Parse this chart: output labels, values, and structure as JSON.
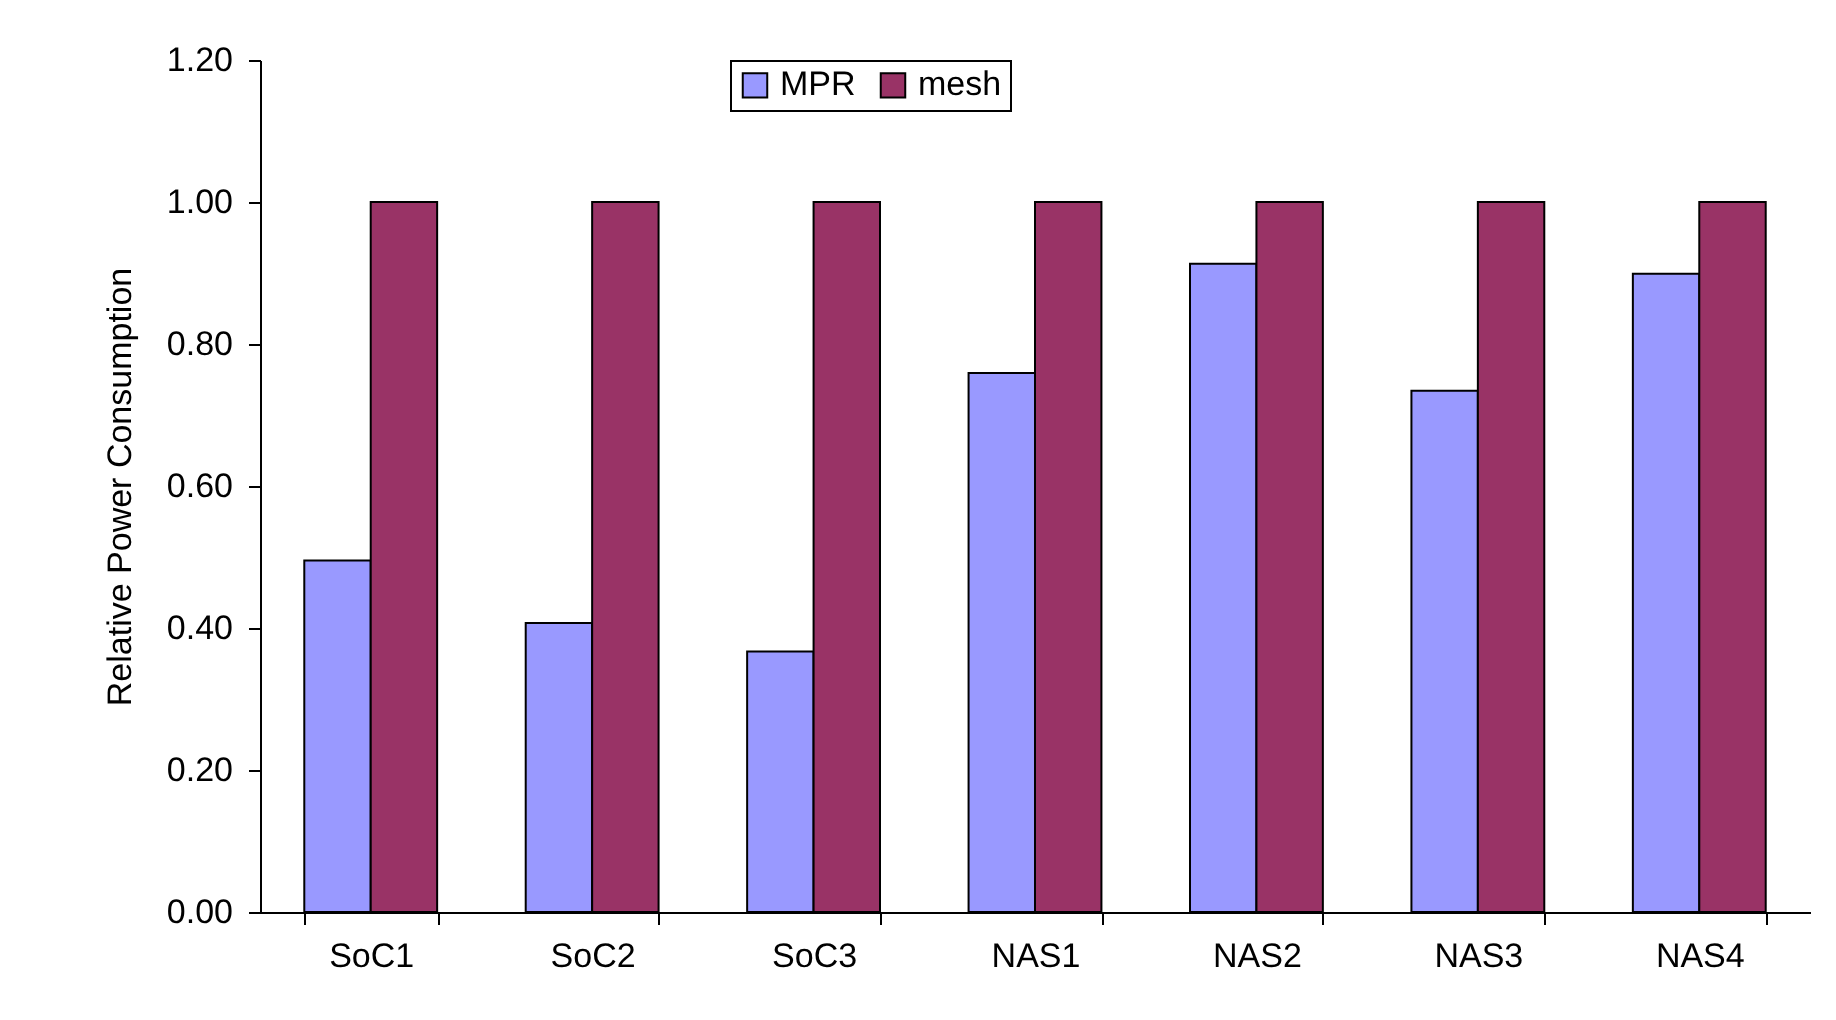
{
  "chart_data": {
    "type": "bar",
    "ylabel": "Relative Power Consumption",
    "categories": [
      "SoC1",
      "SoC2",
      "SoC3",
      "NAS1",
      "NAS2",
      "NAS3",
      "NAS4"
    ],
    "series": [
      {
        "name": "MPR",
        "color": "#9999ff",
        "values": [
          0.495,
          0.407,
          0.367,
          0.759,
          0.913,
          0.734,
          0.899
        ]
      },
      {
        "name": "mesh",
        "color": "#993366",
        "values": [
          1,
          1,
          1,
          1,
          1,
          1,
          1
        ]
      }
    ],
    "ylim": [
      0,
      1.2
    ],
    "yticks": [
      {
        "value": 0,
        "label": "0.00"
      },
      {
        "value": 0.2,
        "label": "0.20"
      },
      {
        "value": 0.4,
        "label": "0.40"
      },
      {
        "value": 0.6,
        "label": "0.60"
      },
      {
        "value": 0.8,
        "label": "0.80"
      },
      {
        "value": 1,
        "label": "1.00"
      },
      {
        "value": 1.2,
        "label": "1.20"
      }
    ],
    "grid": false,
    "legend": "top"
  }
}
